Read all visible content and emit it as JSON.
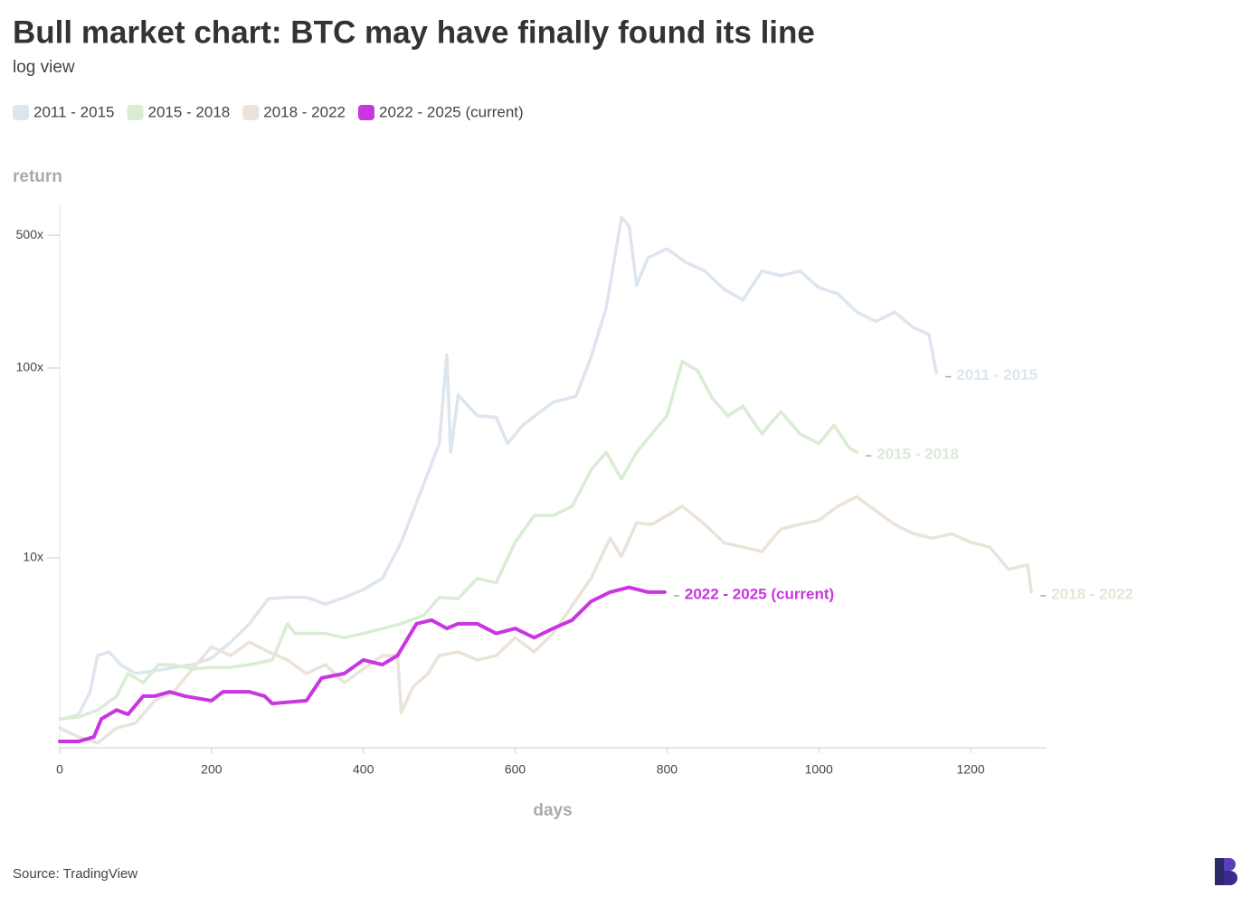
{
  "chart_data": {
    "type": "line",
    "title": "Bull market chart: BTC may have finally found its line",
    "subtitle": "log view",
    "y_label": "return",
    "x_label": "days",
    "source": "Source: TradingView",
    "log_scale": true,
    "xlim": [
      0,
      1300
    ],
    "xticks": [
      0,
      200,
      400,
      600,
      800,
      1000,
      1200
    ],
    "ylim": [
      1,
      700
    ],
    "yticks": [
      {
        "value": 10,
        "label": "10x"
      },
      {
        "value": 100,
        "label": "100x"
      },
      {
        "value": 500,
        "label": "500x"
      }
    ],
    "series": [
      {
        "name": "2011 - 2015",
        "color": "#dde5ee",
        "x": [
          5,
          25,
          40,
          50,
          65,
          80,
          100,
          125,
          150,
          175,
          200,
          225,
          250,
          275,
          300,
          325,
          350,
          375,
          400,
          425,
          450,
          475,
          500,
          510,
          515,
          525,
          550,
          575,
          590,
          610,
          650,
          680,
          700,
          720,
          740,
          750,
          760,
          775,
          800,
          825,
          850,
          875,
          900,
          925,
          950,
          975,
          1000,
          1025,
          1050,
          1075,
          1100,
          1125,
          1145,
          1155
        ],
        "values": [
          1.42,
          1.5,
          1.97,
          3.06,
          3.2,
          2.74,
          2.46,
          2.54,
          2.65,
          2.74,
          2.96,
          3.6,
          4.5,
          6.1,
          6.2,
          6.2,
          5.7,
          6.2,
          6.8,
          7.8,
          12.1,
          22,
          40,
          117,
          36,
          72,
          56,
          55,
          40,
          50,
          66,
          71,
          114,
          208,
          620,
          560,
          273,
          380,
          424,
          360,
          324,
          260,
          228,
          324,
          306,
          324,
          265,
          246,
          197,
          176,
          197,
          163,
          150,
          94
        ]
      },
      {
        "name": "2015 - 2018",
        "color": "#d9ecd4",
        "x": [
          0,
          25,
          50,
          75,
          90,
          110,
          130,
          150,
          175,
          200,
          225,
          250,
          280,
          300,
          310,
          350,
          375,
          400,
          450,
          480,
          500,
          525,
          550,
          575,
          600,
          625,
          650,
          675,
          700,
          720,
          740,
          760,
          780,
          800,
          820,
          840,
          860,
          880,
          900,
          925,
          950,
          975,
          1000,
          1020,
          1040,
          1050
        ],
        "values": [
          1.42,
          1.45,
          1.58,
          1.87,
          2.46,
          2.2,
          2.74,
          2.74,
          2.6,
          2.65,
          2.65,
          2.74,
          2.9,
          4.5,
          4.0,
          4.0,
          3.8,
          4.0,
          4.5,
          5.0,
          6.2,
          6.1,
          7.8,
          7.4,
          12.1,
          16.7,
          16.7,
          18.7,
          29,
          36,
          26,
          36,
          45,
          56,
          108,
          97,
          69,
          56,
          63,
          45,
          59,
          45,
          40,
          50,
          38,
          36
        ]
      },
      {
        "name": "2018 - 2022",
        "color": "#ebe3d9",
        "x": [
          0,
          25,
          50,
          75,
          100,
          125,
          150,
          175,
          200,
          225,
          250,
          275,
          300,
          325,
          350,
          375,
          400,
          425,
          445,
          450,
          465,
          485,
          500,
          525,
          550,
          575,
          600,
          625,
          650,
          675,
          700,
          725,
          740,
          760,
          780,
          800,
          820,
          850,
          875,
          900,
          925,
          950,
          975,
          1000,
          1025,
          1050,
          1075,
          1100,
          1125,
          1150,
          1175,
          1200,
          1225,
          1250,
          1275,
          1280
        ],
        "values": [
          1.27,
          1.14,
          1.06,
          1.27,
          1.35,
          1.77,
          1.97,
          2.6,
          3.4,
          3.06,
          3.6,
          3.2,
          2.9,
          2.46,
          2.74,
          2.2,
          2.6,
          3.06,
          3.06,
          1.53,
          2.08,
          2.46,
          3.06,
          3.2,
          2.9,
          3.06,
          3.8,
          3.2,
          4.0,
          5.6,
          7.8,
          12.7,
          10.2,
          15.3,
          15,
          16.7,
          18.7,
          15,
          12,
          11.4,
          10.8,
          14.2,
          15,
          15.8,
          18.7,
          21,
          17.7,
          15,
          13.4,
          12.7,
          13.4,
          12.1,
          11.4,
          8.7,
          9.2,
          6.6
        ]
      },
      {
        "name": "2022 - 2025 (current)",
        "color": "#c935e0",
        "x": [
          0,
          25,
          45,
          55,
          75,
          90,
          110,
          125,
          145,
          165,
          200,
          215,
          250,
          270,
          280,
          325,
          345,
          375,
          400,
          425,
          445,
          470,
          490,
          510,
          525,
          550,
          575,
          600,
          625,
          650,
          675,
          700,
          725,
          750,
          775,
          797
        ],
        "values": [
          1.08,
          1.08,
          1.14,
          1.42,
          1.58,
          1.5,
          1.87,
          1.87,
          1.97,
          1.87,
          1.77,
          1.97,
          1.97,
          1.87,
          1.71,
          1.77,
          2.33,
          2.46,
          2.9,
          2.74,
          3.06,
          4.5,
          4.7,
          4.25,
          4.5,
          4.5,
          4.0,
          4.25,
          3.8,
          4.25,
          4.7,
          5.9,
          6.6,
          7.0,
          6.6,
          6.6
        ]
      }
    ]
  }
}
